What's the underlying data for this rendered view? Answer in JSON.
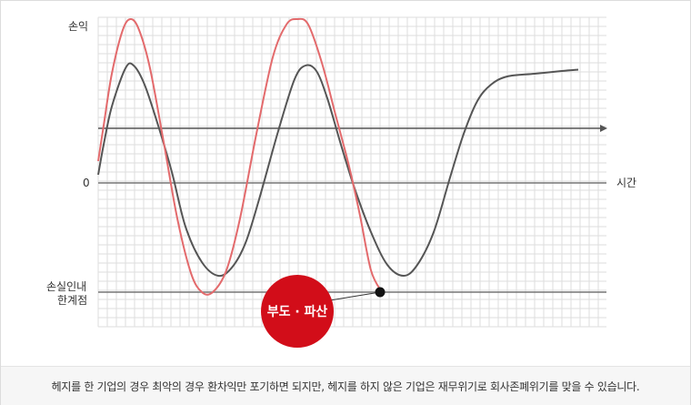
{
  "chart_data": {
    "type": "line",
    "ylabel": "손익",
    "xlabel": "시간",
    "zero_label": "0",
    "loss_limit_label_line1": "손실인내",
    "loss_limit_label_line2": "한계점",
    "loss_limit_value": -4,
    "hedge_level_value": 2,
    "bankruptcy_label": "부도 · 파산",
    "xlim": [
      0,
      18
    ],
    "ylim": [
      -5.5,
      6.2
    ],
    "grid": true,
    "series": [
      {
        "color": "#555555",
        "points": [
          [
            0,
            0.3
          ],
          [
            0.2,
            1.4
          ],
          [
            0.5,
            2.8
          ],
          [
            1,
            4.2
          ],
          [
            1.3,
            4.3
          ],
          [
            1.7,
            3.6
          ],
          [
            2.2,
            2.1
          ],
          [
            2.7,
            0.4
          ],
          [
            3.2,
            -1.6
          ],
          [
            3.8,
            -2.9
          ],
          [
            4.4,
            -3.4
          ],
          [
            4.9,
            -3.1
          ],
          [
            5.4,
            -2.2
          ],
          [
            5.9,
            -0.6
          ],
          [
            6.6,
            1.9
          ],
          [
            7.2,
            3.8
          ],
          [
            7.6,
            4.3
          ],
          [
            8.0,
            4.1
          ],
          [
            8.4,
            3.1
          ],
          [
            8.9,
            1.4
          ],
          [
            9.4,
            -0.2
          ],
          [
            10.0,
            -1.8
          ],
          [
            10.6,
            -3.0
          ],
          [
            11.2,
            -3.4
          ],
          [
            11.7,
            -3.0
          ],
          [
            12.3,
            -1.8
          ],
          [
            12.9,
            0.2
          ],
          [
            13.4,
            1.8
          ],
          [
            13.9,
            3.0
          ],
          [
            14.4,
            3.6
          ],
          [
            15,
            3.9
          ],
          [
            16,
            4.0
          ],
          [
            17,
            4.1
          ],
          [
            17.6,
            4.15
          ]
        ]
      },
      {
        "color": "#e36a6c",
        "points": [
          [
            0,
            0.8
          ],
          [
            0.2,
            2.1
          ],
          [
            0.5,
            4.0
          ],
          [
            0.9,
            5.6
          ],
          [
            1.2,
            6.0
          ],
          [
            1.5,
            5.6
          ],
          [
            1.9,
            4.2
          ],
          [
            2.4,
            1.5
          ],
          [
            2.9,
            -1.3
          ],
          [
            3.4,
            -3.3
          ],
          [
            3.8,
            -4.0
          ],
          [
            4.2,
            -4.0
          ],
          [
            4.7,
            -3.2
          ],
          [
            5.2,
            -1.3
          ],
          [
            5.8,
            1.8
          ],
          [
            6.4,
            4.6
          ],
          [
            6.9,
            5.8
          ],
          [
            7.3,
            6.0
          ],
          [
            7.7,
            5.8
          ],
          [
            8.2,
            4.4
          ],
          [
            8.7,
            2.5
          ],
          [
            9.2,
            0.6
          ],
          [
            9.6,
            -1.2
          ],
          [
            10.0,
            -3.2
          ],
          [
            10.4,
            -4.0
          ]
        ]
      }
    ]
  },
  "caption": "헤지를 한 기업의 경우 최악의 경우 환차익만 포기하면 되지만, 헤지를 하지 않은 기업은 재무위기로 회사존폐위기를 맞을 수 있습니다.",
  "colors": {
    "grid": "#dedede",
    "axis": "#777777",
    "badge": "#d20d19",
    "marker": "#111111"
  }
}
